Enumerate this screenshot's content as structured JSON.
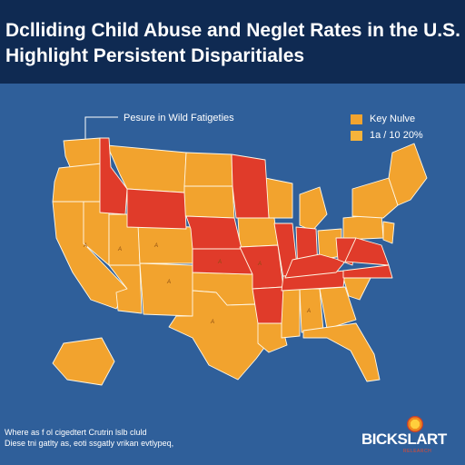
{
  "title": {
    "line1": "Dclliding Child Abuse and Neglet Rates in the U.S.",
    "line2": "Highlight Persistent Disparitiales"
  },
  "callout": {
    "text": "Pesure in Wild Fatigeties"
  },
  "legend": [
    {
      "label": "Key Nulve",
      "color": "#f2a32e"
    },
    {
      "label": "1a / 10 20%",
      "color": "#f5b33b"
    }
  ],
  "colors": {
    "higher": "#e03b2a",
    "lower": "#f2a32e",
    "background": "#2f5f9a",
    "title_bar": "#0f2a52"
  },
  "map": {
    "labels": [
      "A",
      "A",
      "A",
      "A",
      "A",
      "A",
      "A",
      "A"
    ],
    "highlighted_states": [
      "Idaho",
      "Wyoming",
      "Nebraska",
      "Kansas",
      "Minnesota",
      "Missouri",
      "Illinois",
      "Indiana",
      "Arkansas",
      "Tennessee",
      "Kentucky",
      "Virginia",
      "North Carolina",
      "West Virginia"
    ]
  },
  "footnote": {
    "line1": "Where as f ol cigedtert Crutrin lslb cluld",
    "line2": "Diese tni gatlty as, eoti ssgatly vrikan evtlypeq,"
  },
  "brand": {
    "name": "BICKSLART",
    "tagline": "RELEARCH"
  }
}
